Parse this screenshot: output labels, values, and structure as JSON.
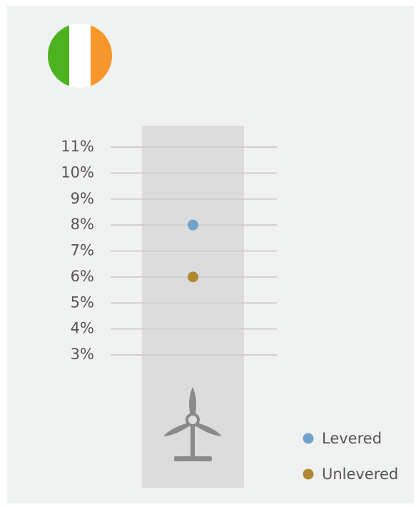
{
  "chart_data": {
    "type": "dot",
    "categories": [
      null
    ],
    "series": [
      {
        "name": "Levered",
        "color": "#6fa3c9",
        "values": [
          8
        ]
      },
      {
        "name": "Unlevered",
        "color": "#b08a30",
        "values": [
          6
        ]
      }
    ],
    "ylim": [
      3,
      11
    ],
    "yticks": [
      {
        "value": 3,
        "label": "3%"
      },
      {
        "value": 4,
        "label": "4%"
      },
      {
        "value": 5,
        "label": "5%"
      },
      {
        "value": 6,
        "label": "6%"
      },
      {
        "value": 7,
        "label": "7%"
      },
      {
        "value": 8,
        "label": "8%"
      },
      {
        "value": 9,
        "label": "9%"
      },
      {
        "value": 10,
        "label": "10%"
      },
      {
        "value": 11,
        "label": "11%"
      }
    ],
    "grid": true
  }
}
